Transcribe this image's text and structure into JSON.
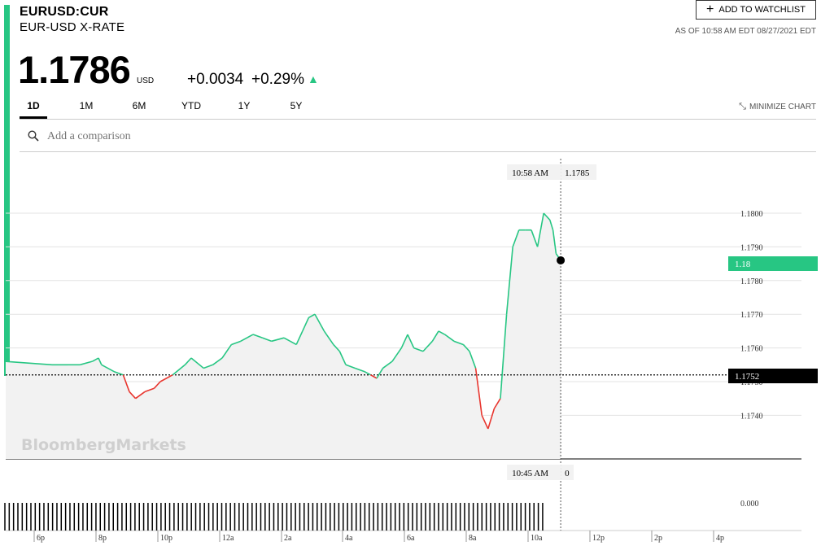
{
  "header": {
    "ticker": "EURUSD:CUR",
    "name": "EUR-USD X-RATE",
    "price": "1.1786",
    "price_unit": "USD",
    "change": "+0.0034",
    "change_pct": "+0.29%",
    "watchlist_label": "ADD TO WATCHLIST",
    "as_of": "AS OF 10:58 AM EDT 08/27/2021 EDT"
  },
  "tabs": [
    "1D",
    "1M",
    "6M",
    "YTD",
    "1Y",
    "5Y"
  ],
  "active_tab": "1D",
  "minimize_label": "MINIMIZE CHART",
  "comparison": {
    "placeholder": "Add a comparison"
  },
  "watermark": "BloombergMarkets",
  "colors": {
    "up": "#27c683",
    "down": "#e8362f",
    "accent": "#27c683"
  },
  "chart_data": {
    "type": "line",
    "x_ticks": [
      "6p",
      "8p",
      "10p",
      "12a",
      "2a",
      "4a",
      "6a",
      "8a",
      "10a",
      "12p",
      "2p",
      "4p"
    ],
    "y_ticks": [
      "1.1800",
      "1.1790",
      "1.1780",
      "1.1770",
      "1.1760",
      "1.1750",
      "1.1740"
    ],
    "ylim": [
      1.1731,
      1.1807
    ],
    "previous_close": 1.1752,
    "previous_close_label": "1.1752",
    "current_label": "1.18",
    "crosshair": {
      "time": "10:58 AM",
      "value": "1.1785",
      "volume_time": "10:45 AM",
      "volume_value": "0"
    },
    "volume_axis_label": "0.000",
    "x_hours": [
      -6,
      -5.5,
      -5,
      -4.6,
      -4.2,
      -4,
      -3.9,
      -3.5,
      -3.2,
      -3,
      -2.8,
      -2.5,
      -2.2,
      -2,
      -1.6,
      -1.2,
      -1,
      -0.6,
      -0.3,
      0,
      0.3,
      0.6,
      1,
      1.3,
      1.6,
      2,
      2.2,
      2.4,
      2.6,
      2.8,
      3,
      3.3,
      3.6,
      3.8,
      4,
      4.3,
      4.6,
      4.8,
      5,
      5.2,
      5.5,
      5.8,
      6,
      6.2,
      6.5,
      6.8,
      7,
      7.2,
      7.5,
      7.8,
      8,
      8.2,
      8.4,
      8.6,
      8.8,
      9,
      9.2,
      9.4,
      9.6,
      9.8,
      10,
      10.2,
      10.4,
      10.6,
      10.7,
      10.8,
      10.95
    ],
    "values": [
      1.1756,
      1.1755,
      1.1755,
      1.1755,
      1.1756,
      1.1757,
      1.1755,
      1.1753,
      1.1752,
      1.1747,
      1.1745,
      1.1747,
      1.1748,
      1.175,
      1.1752,
      1.1755,
      1.1757,
      1.1754,
      1.1755,
      1.1757,
      1.1761,
      1.1762,
      1.1764,
      1.1763,
      1.1762,
      1.1763,
      1.1762,
      1.1761,
      1.1765,
      1.1769,
      1.177,
      1.1765,
      1.1761,
      1.1759,
      1.1755,
      1.1754,
      1.1753,
      1.1752,
      1.1751,
      1.1754,
      1.1756,
      1.176,
      1.1764,
      1.176,
      1.1759,
      1.1762,
      1.1765,
      1.1764,
      1.1762,
      1.1761,
      1.1759,
      1.1754,
      1.174,
      1.1736,
      1.1742,
      1.1745,
      1.177,
      1.179,
      1.1795,
      1.1795,
      1.1795,
      1.179,
      1.18,
      1.1798,
      1.1795,
      1.1788,
      1.1786
    ]
  }
}
